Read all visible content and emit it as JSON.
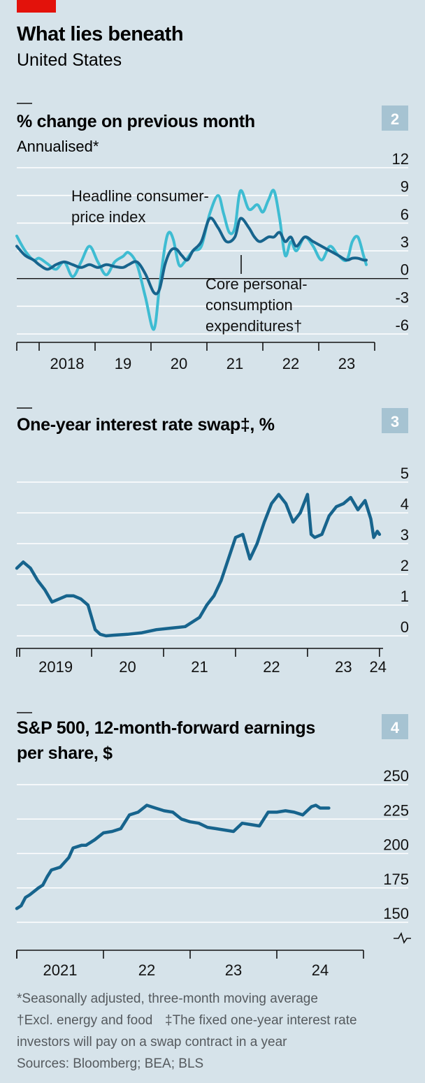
{
  "header": {
    "title": "What lies beneath",
    "subtitle": "United States",
    "accent_color": "#e3120b",
    "background_color": "#d6e3ea"
  },
  "footnotes": {
    "line1": "*Seasonally adjusted, three-month moving average",
    "line2a": "†Excl. energy and food",
    "line2b": "‡The fixed one-year interest rate",
    "line3": "investors will pay on a swap contract in a year",
    "sources": "Sources: Bloomberg; BEA; BLS"
  },
  "chart_data": [
    {
      "type": "line",
      "panel_number": "2",
      "title": "% change on previous month",
      "subtitle": "Annualised*",
      "ylim": [
        -6,
        12
      ],
      "yticks": [
        12,
        9,
        6,
        3,
        0,
        -3,
        -6
      ],
      "xlim": [
        2017.6,
        2024.0
      ],
      "xtick_labels": [
        {
          "label": "2018",
          "x": 2018.5
        },
        {
          "label": "19",
          "x": 2019.5
        },
        {
          "label": "20",
          "x": 2020.5
        },
        {
          "label": "21",
          "x": 2021.5
        },
        {
          "label": "22",
          "x": 2022.5
        },
        {
          "label": "23",
          "x": 2023.5
        }
      ],
      "annotations": {
        "headline_line1": "Headline consumer-",
        "headline_line2": "price index",
        "core_line1": "Core personal-",
        "core_line2": "consumption",
        "core_line3": "expenditures†"
      },
      "series": [
        {
          "color": "#3ebcd2",
          "x": [
            2017.6,
            2017.75,
            2017.9,
            2018.0,
            2018.15,
            2018.3,
            2018.45,
            2018.6,
            2018.75,
            2018.9,
            2019.05,
            2019.2,
            2019.35,
            2019.5,
            2019.6,
            2019.75,
            2019.9,
            2020.05,
            2020.15,
            2020.25,
            2020.32,
            2020.4,
            2020.5,
            2020.6,
            2020.75,
            2020.9,
            2021.05,
            2021.2,
            2021.3,
            2021.4,
            2021.5,
            2021.6,
            2021.75,
            2021.9,
            2022.0,
            2022.1,
            2022.2,
            2022.3,
            2022.4,
            2022.5,
            2022.6,
            2022.75,
            2022.9,
            2023.05,
            2023.2,
            2023.35,
            2023.5,
            2023.6,
            2023.7,
            2023.8,
            2023.85
          ],
          "y": [
            4.6,
            3.0,
            2.0,
            2.2,
            1.6,
            1.0,
            1.8,
            0.2,
            1.8,
            3.5,
            1.8,
            0.4,
            1.8,
            2.4,
            2.8,
            1.5,
            -2.0,
            -5.5,
            -1.0,
            3.5,
            5.0,
            4.2,
            1.5,
            1.8,
            3.0,
            3.5,
            7.0,
            9.0,
            7.0,
            5.0,
            5.5,
            9.5,
            7.5,
            8.0,
            7.2,
            8.5,
            9.5,
            6.5,
            2.5,
            4.0,
            3.0,
            4.5,
            3.5,
            2.0,
            3.5,
            2.5,
            2.0,
            4.0,
            4.5,
            2.5,
            1.5
          ]
        },
        {
          "color": "#17648d",
          "x": [
            2017.6,
            2017.75,
            2017.9,
            2018.0,
            2018.15,
            2018.3,
            2018.45,
            2018.6,
            2018.75,
            2018.9,
            2019.05,
            2019.2,
            2019.35,
            2019.5,
            2019.6,
            2019.75,
            2019.9,
            2020.05,
            2020.15,
            2020.25,
            2020.35,
            2020.45,
            2020.55,
            2020.65,
            2020.75,
            2020.9,
            2021.05,
            2021.2,
            2021.35,
            2021.5,
            2021.6,
            2021.75,
            2021.85,
            2021.95,
            2022.1,
            2022.2,
            2022.3,
            2022.4,
            2022.5,
            2022.6,
            2022.75,
            2022.9,
            2023.05,
            2023.2,
            2023.35,
            2023.5,
            2023.6,
            2023.7,
            2023.8,
            2023.85
          ],
          "y": [
            3.5,
            2.5,
            2.0,
            1.5,
            1.0,
            1.5,
            1.8,
            1.5,
            1.2,
            1.5,
            1.2,
            1.5,
            1.3,
            1.2,
            1.5,
            1.8,
            0.5,
            -1.5,
            -1.2,
            1.5,
            3.0,
            3.2,
            2.5,
            2.0,
            3.0,
            4.0,
            6.5,
            5.5,
            4.0,
            4.5,
            6.5,
            5.5,
            4.5,
            4.0,
            4.5,
            4.5,
            5.0,
            4.0,
            4.5,
            3.5,
            4.5,
            4.0,
            3.5,
            3.0,
            2.5,
            2.0,
            2.2,
            2.2,
            2.0,
            2.0
          ]
        }
      ]
    },
    {
      "type": "line",
      "panel_number": "3",
      "title": "One-year interest rate swap‡, %",
      "ylim": [
        0,
        5
      ],
      "yticks": [
        5,
        4,
        3,
        2,
        1,
        0
      ],
      "xlim": [
        2018.96,
        2024.05
      ],
      "xtick_labels": [
        {
          "label": "2019",
          "x": 2019.5
        },
        {
          "label": "20",
          "x": 2020.5
        },
        {
          "label": "21",
          "x": 2021.5
        },
        {
          "label": "22",
          "x": 2022.5
        },
        {
          "label": "23",
          "x": 2023.5
        },
        {
          "label": "24",
          "x": 2023.98
        }
      ],
      "series": [
        {
          "color": "#17648d",
          "x": [
            2018.96,
            2019.05,
            2019.15,
            2019.25,
            2019.35,
            2019.45,
            2019.55,
            2019.65,
            2019.75,
            2019.85,
            2019.95,
            2020.05,
            2020.12,
            2020.2,
            2020.3,
            2020.5,
            2020.7,
            2020.9,
            2021.1,
            2021.3,
            2021.5,
            2021.6,
            2021.7,
            2021.8,
            2021.9,
            2022.0,
            2022.1,
            2022.2,
            2022.3,
            2022.4,
            2022.5,
            2022.6,
            2022.7,
            2022.8,
            2022.9,
            2023.0,
            2023.05,
            2023.1,
            2023.2,
            2023.3,
            2023.4,
            2023.5,
            2023.6,
            2023.7,
            2023.8,
            2023.88,
            2023.92,
            2023.97,
            2024.0
          ],
          "y": [
            2.2,
            2.4,
            2.2,
            1.8,
            1.5,
            1.1,
            1.2,
            1.3,
            1.3,
            1.2,
            1.0,
            0.2,
            0.05,
            0.0,
            0.02,
            0.05,
            0.1,
            0.2,
            0.25,
            0.3,
            0.6,
            1.0,
            1.3,
            1.8,
            2.5,
            3.2,
            3.3,
            2.5,
            3.0,
            3.7,
            4.3,
            4.6,
            4.3,
            3.7,
            4.0,
            4.6,
            3.3,
            3.2,
            3.3,
            3.9,
            4.2,
            4.3,
            4.5,
            4.1,
            4.4,
            3.8,
            3.2,
            3.4,
            3.3
          ]
        }
      ]
    },
    {
      "type": "line",
      "panel_number": "4",
      "title_line1": "S&P 500, 12-month-forward earnings",
      "title_line2": "per share, $",
      "ylim": [
        150,
        250
      ],
      "yticks": [
        250,
        225,
        200,
        175,
        150
      ],
      "xlim": [
        2020.0,
        2024.0
      ],
      "xtick_labels": [
        {
          "label": "2021",
          "x": 2020.5
        },
        {
          "label": "22",
          "x": 2021.5
        },
        {
          "label": "23",
          "x": 2022.5
        },
        {
          "label": "24",
          "x": 2023.5
        }
      ],
      "series": [
        {
          "color": "#17648d",
          "x": [
            2020.0,
            2020.05,
            2020.1,
            2020.15,
            2020.25,
            2020.3,
            2020.35,
            2020.4,
            2020.5,
            2020.6,
            2020.65,
            2020.7,
            2020.75,
            2020.8,
            2020.9,
            2021.0,
            2021.1,
            2021.2,
            2021.3,
            2021.4,
            2021.5,
            2021.6,
            2021.7,
            2021.8,
            2021.9,
            2022.0,
            2022.1,
            2022.2,
            2022.3,
            2022.4,
            2022.5,
            2022.6,
            2022.7,
            2022.8,
            2022.9,
            2023.0,
            2023.1,
            2023.2,
            2023.3,
            2023.4,
            2023.45,
            2023.5,
            2023.6
          ],
          "y": [
            160,
            162,
            168,
            170,
            175,
            177,
            183,
            188,
            190,
            197,
            204,
            205,
            206,
            206,
            210,
            215,
            216,
            218,
            228,
            230,
            235,
            233,
            231,
            230,
            225,
            223,
            222,
            219,
            218,
            217,
            216,
            222,
            221,
            220,
            230,
            230,
            231,
            230,
            228,
            234,
            235,
            233,
            233
          ]
        }
      ]
    }
  ]
}
